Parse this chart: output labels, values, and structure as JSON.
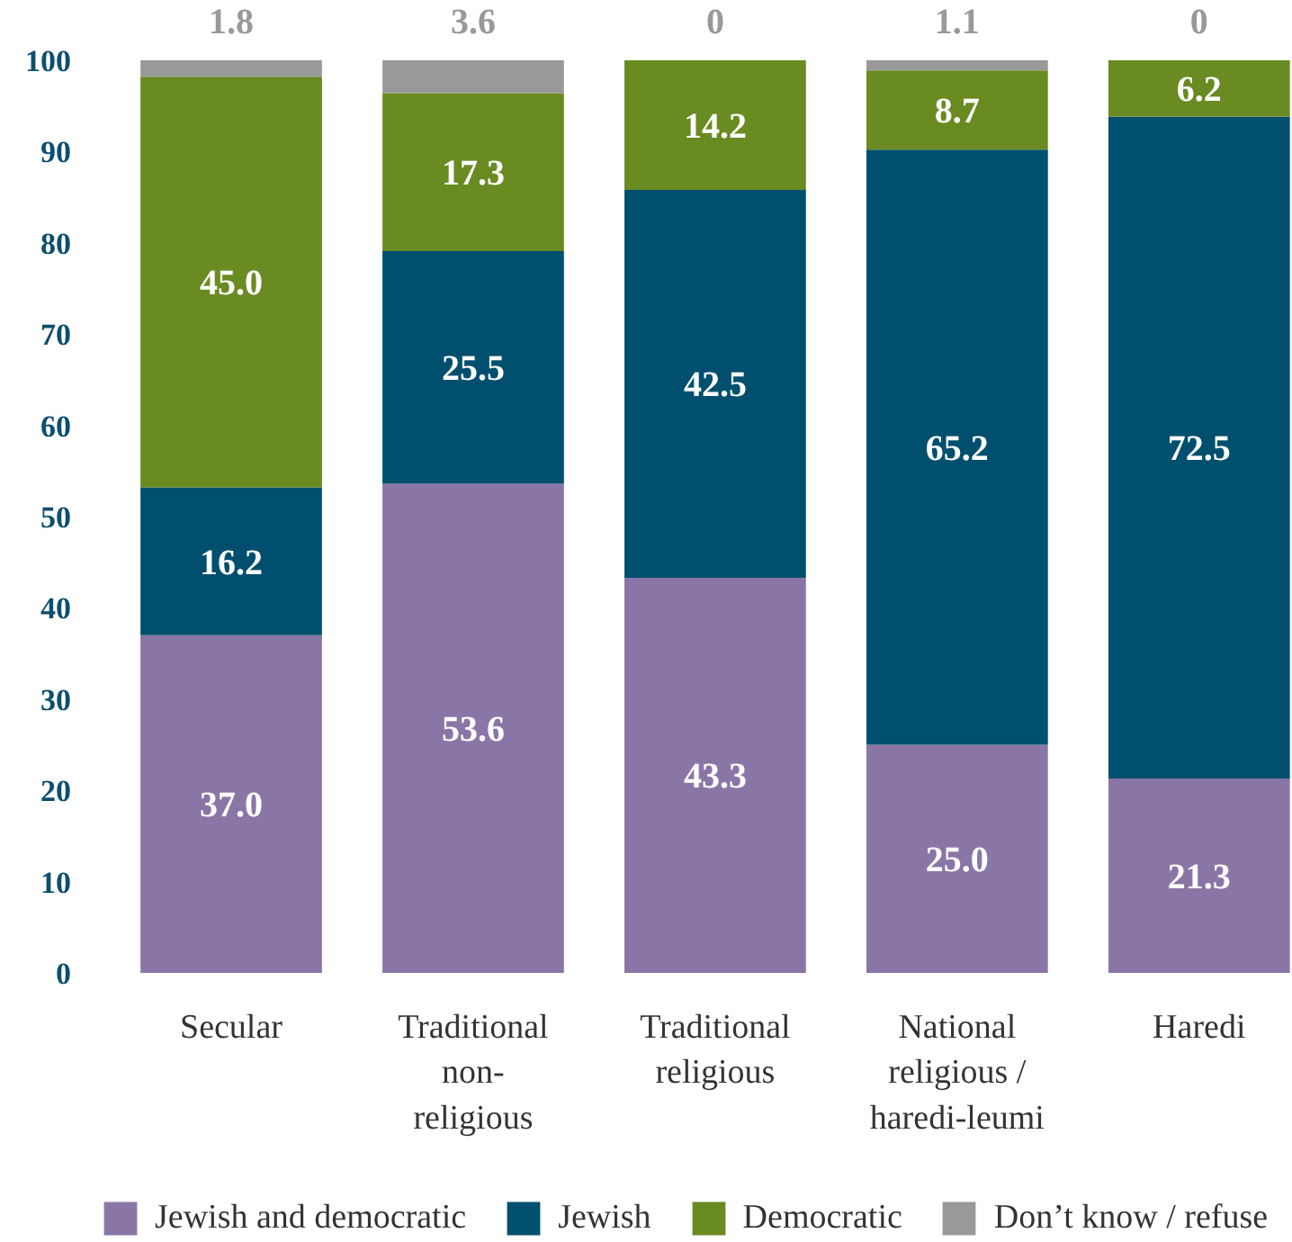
{
  "chart_data": {
    "type": "bar",
    "stacked": true,
    "categories": [
      "Secular",
      "Traditional non-religious",
      "Traditional religious",
      "National religious / haredi-leumi",
      "Haredi"
    ],
    "series": [
      {
        "name": "Jewish and democratic",
        "color": "#8a76a6",
        "values": [
          37.0,
          53.6,
          43.3,
          25.0,
          21.3
        ],
        "value_labels": [
          "37.0",
          "53.6",
          "43.3",
          "25.0",
          "21.3"
        ]
      },
      {
        "name": "Jewish",
        "color": "#004f6e",
        "values": [
          16.2,
          25.5,
          42.5,
          65.2,
          72.5
        ],
        "value_labels": [
          "16.2",
          "25.5",
          "42.5",
          "65.2",
          "72.5"
        ]
      },
      {
        "name": "Democratic",
        "color": "#6a8a22",
        "values": [
          45.0,
          17.3,
          14.2,
          8.7,
          6.2
        ],
        "value_labels": [
          "45.0",
          "17.3",
          "14.2",
          "8.7",
          "6.2"
        ]
      },
      {
        "name": "Don’t know / refuse",
        "color": "#999999",
        "values": [
          1.8,
          3.6,
          0,
          1.1,
          0
        ],
        "value_labels": [
          "1.8",
          "3.6",
          "0",
          "1.1",
          "0"
        ]
      }
    ],
    "ylim": [
      0,
      100
    ],
    "yticks": [
      0,
      10,
      20,
      30,
      40,
      50,
      60,
      70,
      80,
      90,
      100
    ],
    "grid": false,
    "legend": "bottom"
  }
}
